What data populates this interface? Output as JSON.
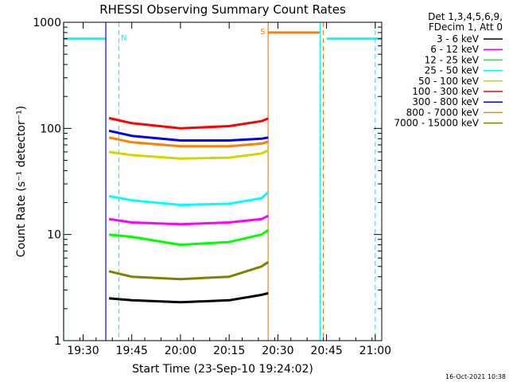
{
  "chart_data": {
    "type": "line",
    "title": "RHESSI Observing Summary Count Rates",
    "xlabel": "Start Time (23-Sep-10 19:24:02)",
    "ylabel": "Count Rate (s⁻¹ detector⁻¹)",
    "x_ticks": [
      "19:30",
      "19:45",
      "20:00",
      "20:15",
      "20:30",
      "20:45",
      "21:00"
    ],
    "y_ticks": [
      "1",
      "10",
      "100",
      "1000"
    ],
    "xlim": [
      "19:24",
      "21:02"
    ],
    "ylim": [
      1,
      1000
    ],
    "yscale": "log",
    "legend_header": [
      "Det 1,3,4,5,6,9,",
      "FDecim 1, Att 0"
    ],
    "timestamp": "16-Oct-2021 10:38",
    "legend_position": "right, outside plot",
    "series": [
      {
        "name": "3 - 6 keV",
        "color": "#000000",
        "x": [
          "19:38",
          "19:45",
          "20:00",
          "20:15",
          "20:25",
          "20:27"
        ],
        "y": [
          2.5,
          2.4,
          2.3,
          2.4,
          2.7,
          2.8
        ]
      },
      {
        "name": "6 - 12 keV",
        "color": "#ff00ff",
        "x": [
          "19:38",
          "19:45",
          "20:00",
          "20:15",
          "20:25",
          "20:27"
        ],
        "y": [
          14,
          13,
          12.5,
          13,
          14,
          15
        ]
      },
      {
        "name": "12 - 25 keV",
        "color": "#00ff00",
        "x": [
          "19:38",
          "19:45",
          "20:00",
          "20:15",
          "20:25",
          "20:27"
        ],
        "y": [
          10,
          9.5,
          8,
          8.5,
          10,
          11
        ]
      },
      {
        "name": "25 - 50 keV",
        "color": "#00ffff",
        "x": [
          "19:38",
          "19:45",
          "20:00",
          "20:15",
          "20:25",
          "20:27"
        ],
        "y": [
          23,
          21,
          19,
          19.5,
          22,
          25
        ]
      },
      {
        "name": "50 - 100 keV",
        "color": "#d4d400",
        "x": [
          "19:38",
          "19:45",
          "20:00",
          "20:15",
          "20:25",
          "20:27"
        ],
        "y": [
          60,
          56,
          52,
          53,
          58,
          62
        ]
      },
      {
        "name": "100 - 300 keV",
        "color": "#ff0000",
        "x": [
          "19:38",
          "19:45",
          "20:00",
          "20:15",
          "20:25",
          "20:27"
        ],
        "y": [
          125,
          112,
          100,
          105,
          117,
          124
        ]
      },
      {
        "name": "300 - 800 keV",
        "color": "#0000ff",
        "x": [
          "19:38",
          "19:45",
          "20:00",
          "20:15",
          "20:25",
          "20:27"
        ],
        "y": [
          95,
          85,
          77,
          77,
          80,
          82
        ]
      },
      {
        "name": "800 - 7000 keV",
        "color": "#ff8000",
        "x": [
          "19:38",
          "19:45",
          "20:00",
          "20:15",
          "20:25",
          "20:27"
        ],
        "y": [
          82,
          74,
          68,
          68,
          72,
          75
        ]
      },
      {
        "name": "7000 - 15000 keV",
        "color": "#808000",
        "x": [
          "19:38",
          "19:45",
          "20:00",
          "20:15",
          "20:25",
          "20:27"
        ],
        "y": [
          4.5,
          4,
          3.8,
          4,
          5,
          5.5
        ]
      }
    ],
    "flag_bars": [
      {
        "label": "",
        "color": "#00ffff",
        "x": [
          "19:24",
          "19:37"
        ],
        "y": 700
      },
      {
        "label": "N",
        "color": "#00ffff",
        "x": [
          "19:37",
          "19:37"
        ],
        "y": 700
      },
      {
        "label": "S",
        "color": "#ff8000",
        "x": [
          "20:27",
          "20:43"
        ],
        "y": 800
      },
      {
        "label": "",
        "color": "#00ffff",
        "x": [
          "20:45",
          "21:02"
        ],
        "y": 700
      }
    ],
    "vertical_markers": [
      {
        "x": "19:24",
        "color": "#00ffff",
        "style": "solid"
      },
      {
        "x": "19:37",
        "color": "#0000ff",
        "style": "solid"
      },
      {
        "x": "19:41",
        "color": "#00ffff",
        "style": "dashed"
      },
      {
        "x": "20:27",
        "color": "#ff8000",
        "style": "solid"
      },
      {
        "x": "20:43",
        "color": "#00ffff",
        "style": "solid"
      },
      {
        "x": "20:44",
        "color": "#ff8000",
        "style": "dashed"
      },
      {
        "x": "21:00",
        "color": "#00ffff",
        "style": "dashed"
      }
    ]
  }
}
